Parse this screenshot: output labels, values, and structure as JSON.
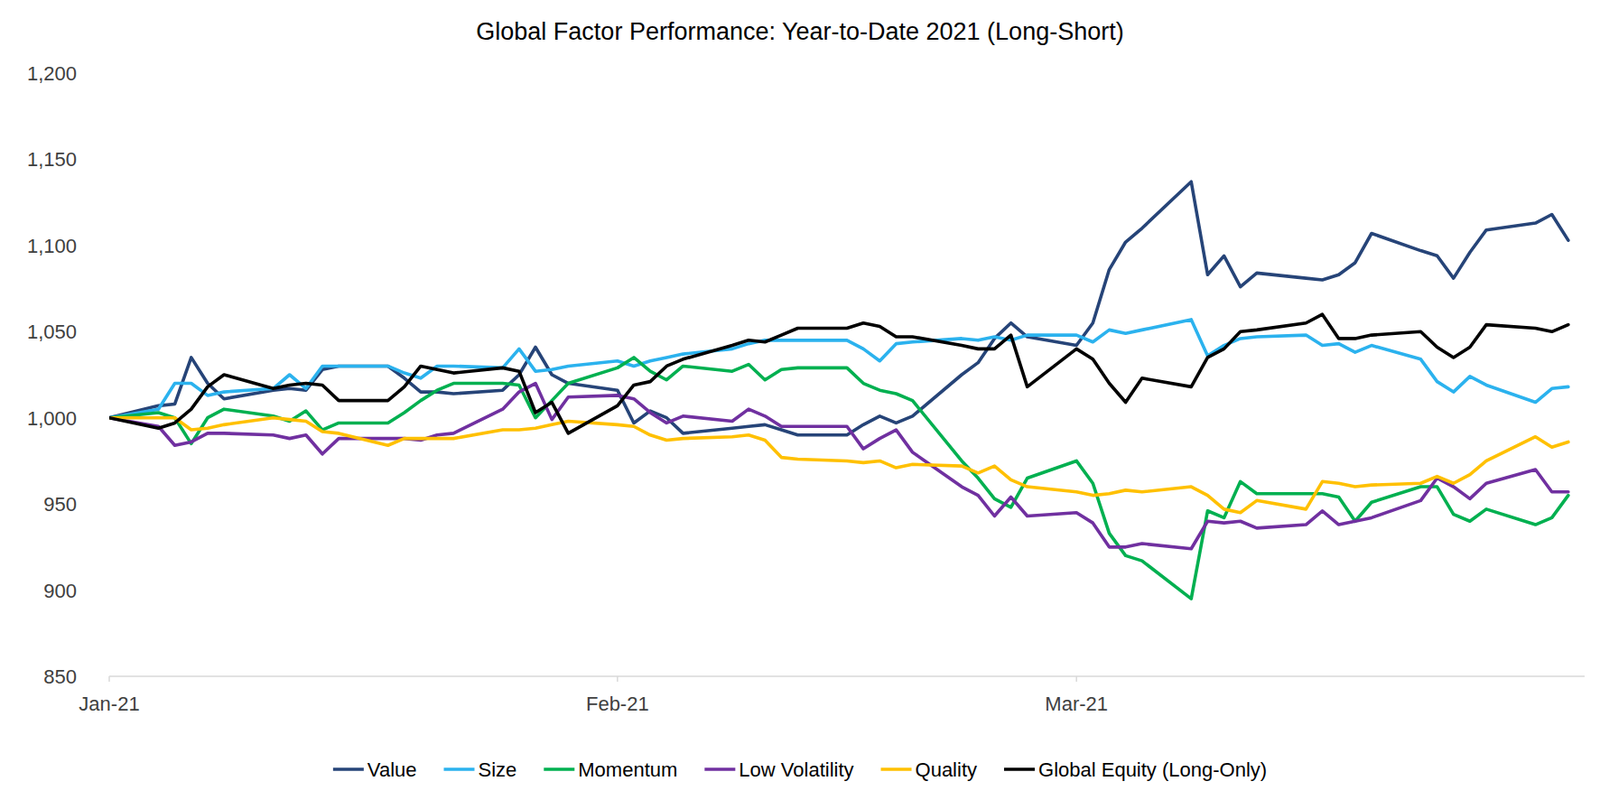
{
  "chart_data": {
    "type": "line",
    "title": "Global Factor Performance: Year-to-Date 2021 (Long-Short)",
    "x": [
      0,
      3,
      4,
      5,
      6,
      7,
      10,
      11,
      12,
      13,
      14,
      17,
      18,
      19,
      20,
      21,
      24,
      25,
      26,
      27,
      28,
      31,
      32,
      33,
      34,
      35,
      38,
      39,
      40,
      41,
      42,
      45,
      46,
      47,
      48,
      49,
      52,
      53,
      54,
      55,
      56,
      59,
      60,
      61,
      62,
      63,
      66,
      67,
      68,
      69,
      70,
      73,
      74,
      75,
      76,
      77,
      80,
      81,
      82,
      83,
      84,
      87,
      88,
      89
    ],
    "xlim": [
      0,
      90
    ],
    "xticks": [
      {
        "value": 0,
        "label": "Jan-21"
      },
      {
        "value": 31,
        "label": "Feb-21"
      },
      {
        "value": 59,
        "label": "Mar-21"
      }
    ],
    "ylim": [
      850,
      1200
    ],
    "yticks": [
      850,
      900,
      950,
      {
        "value": 1000,
        "label": "1,000"
      },
      {
        "value": 1050,
        "label": "1,050"
      },
      {
        "value": 1100,
        "label": "1,100"
      },
      {
        "value": 1150,
        "label": "1,150"
      },
      {
        "value": 1200,
        "label": "1,200"
      }
    ],
    "grid": false,
    "legend": "bottom",
    "series": [
      {
        "name": "Value",
        "color": "#264478",
        "values": [
          1000,
          1007,
          1008,
          1035,
          1020,
          1011,
          1016,
          1017,
          1016,
          1028,
          1030,
          1030,
          1023,
          1015,
          1015,
          1014,
          1016,
          1025,
          1041,
          1025,
          1020,
          1016,
          997,
          1004,
          1000,
          991,
          994,
          995,
          996,
          993,
          990,
          990,
          996,
          1001,
          997,
          1001,
          1025,
          1032,
          1046,
          1055,
          1047,
          1042,
          1055,
          1086,
          1102,
          1110,
          1137,
          1083,
          1094,
          1076,
          1084,
          1081,
          1080,
          1083,
          1090,
          1107,
          1097,
          1094,
          1081,
          1096,
          1109,
          1113,
          1118,
          1103
        ]
      },
      {
        "name": "Size",
        "color": "#2BB2EE",
        "values": [
          1000,
          1005,
          1020,
          1020,
          1013,
          1015,
          1017,
          1025,
          1017,
          1030,
          1030,
          1030,
          1026,
          1023,
          1030,
          1030,
          1029,
          1040,
          1027,
          1028,
          1030,
          1033,
          1030,
          1033,
          1035,
          1037,
          1040,
          1043,
          1045,
          1045,
          1045,
          1045,
          1040,
          1033,
          1043,
          1044,
          1046,
          1045,
          1047,
          1045,
          1048,
          1048,
          1044,
          1051,
          1049,
          1051,
          1057,
          1036,
          1042,
          1046,
          1047,
          1048,
          1042,
          1043,
          1038,
          1042,
          1034,
          1021,
          1015,
          1024,
          1019,
          1009,
          1017,
          1018
        ]
      },
      {
        "name": "Momentum",
        "color": "#00B050",
        "values": [
          1000,
          1003,
          1000,
          985,
          1000,
          1005,
          1001,
          998,
          1004,
          993,
          997,
          997,
          1003,
          1010,
          1016,
          1020,
          1020,
          1019,
          1000,
          1010,
          1020,
          1029,
          1035,
          1027,
          1022,
          1030,
          1027,
          1031,
          1022,
          1028,
          1029,
          1029,
          1020,
          1016,
          1014,
          1010,
          975,
          965,
          953,
          948,
          965,
          975,
          962,
          933,
          920,
          917,
          895,
          946,
          942,
          963,
          956,
          956,
          956,
          954,
          940,
          951,
          960,
          960,
          944,
          940,
          947,
          938,
          942,
          955
        ]
      },
      {
        "name": "Low Volatility",
        "color": "#7030A0",
        "values": [
          1000,
          995,
          984,
          986,
          991,
          991,
          990,
          988,
          990,
          979,
          988,
          988,
          988,
          987,
          990,
          991,
          1005,
          1015,
          1020,
          999,
          1012,
          1013,
          1011,
          1003,
          997,
          1001,
          998,
          1005,
          1001,
          995,
          995,
          995,
          982,
          988,
          993,
          980,
          960,
          955,
          943,
          954,
          943,
          945,
          939,
          925,
          925,
          927,
          924,
          940,
          939,
          940,
          936,
          938,
          946,
          938,
          940,
          942,
          952,
          965,
          960,
          953,
          962,
          970,
          957,
          957
        ]
      },
      {
        "name": "Quality",
        "color": "#FFC000",
        "values": [
          1000,
          1000,
          1000,
          993,
          994,
          996,
          1000,
          999,
          998,
          992,
          991,
          984,
          988,
          988,
          988,
          988,
          993,
          993,
          994,
          996,
          998,
          996,
          995,
          990,
          987,
          988,
          989,
          990,
          987,
          977,
          976,
          975,
          974,
          975,
          971,
          973,
          972,
          968,
          972,
          964,
          960,
          957,
          955,
          956,
          958,
          957,
          960,
          955,
          947,
          945,
          952,
          947,
          963,
          962,
          960,
          961,
          962,
          966,
          962,
          967,
          975,
          989,
          983,
          986
        ]
      },
      {
        "name": "Global Equity (Long-Only)",
        "color": "#000000",
        "values": [
          1000,
          994,
          997,
          1005,
          1018,
          1025,
          1017,
          1019,
          1020,
          1019,
          1010,
          1010,
          1018,
          1030,
          1028,
          1026,
          1029,
          1027,
          1003,
          1009,
          991,
          1007,
          1019,
          1021,
          1030,
          1034,
          1042,
          1045,
          1044,
          1048,
          1052,
          1052,
          1055,
          1053,
          1047,
          1047,
          1042,
          1040,
          1040,
          1048,
          1018,
          1040,
          1034,
          1020,
          1009,
          1023,
          1018,
          1035,
          1040,
          1050,
          1051,
          1055,
          1060,
          1046,
          1046,
          1048,
          1050,
          1041,
          1035,
          1041,
          1054,
          1052,
          1050,
          1054
        ]
      }
    ]
  }
}
